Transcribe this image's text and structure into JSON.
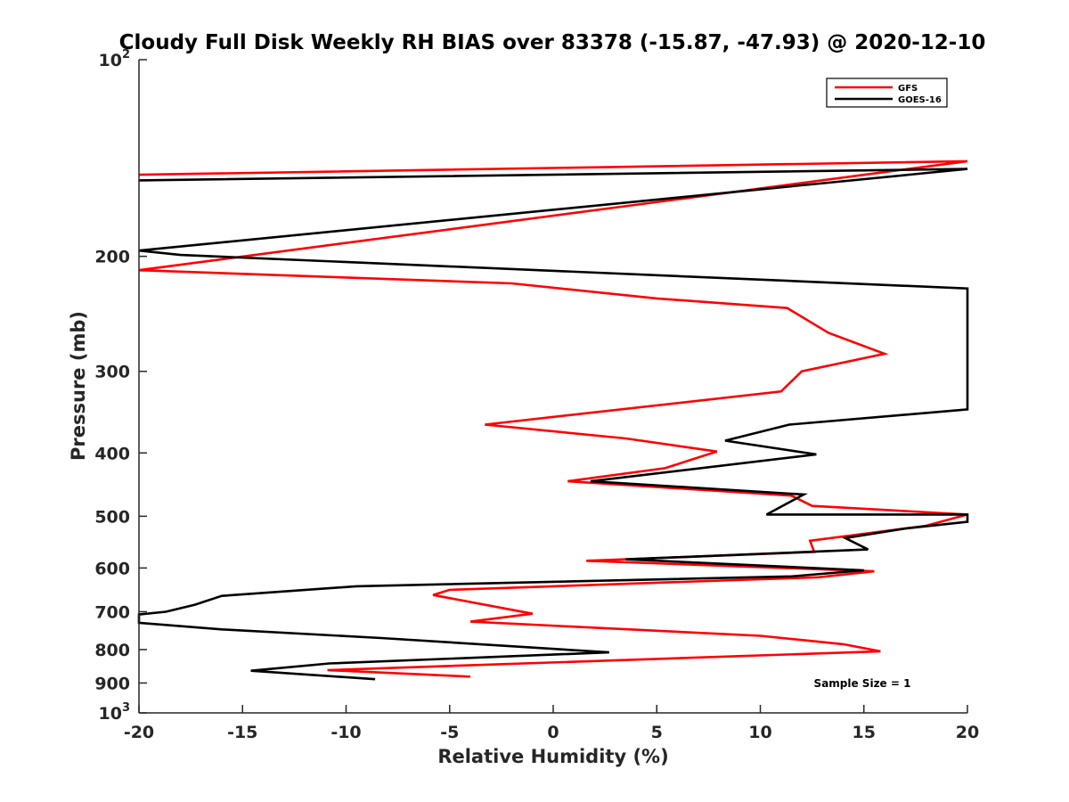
{
  "chart_data": {
    "type": "line",
    "title": "Cloudy Full Disk Weekly RH BIAS over 83378 (-15.87, -47.93) @ 2020-12-10",
    "xlabel": "Relative Humidity (%)",
    "ylabel": "Pressure (mb)",
    "xlim": [
      -20,
      20
    ],
    "ylim": [
      100,
      1000
    ],
    "y_scale": "log",
    "y_reversed": true,
    "x_ticks": [
      "-20",
      "-15",
      "-10",
      "-5",
      "0",
      "5",
      "10",
      "15",
      "20"
    ],
    "y_ticks": [
      {
        "value": 100,
        "base": "10",
        "exp": "2"
      },
      {
        "value": 200,
        "label": "200"
      },
      {
        "value": 300,
        "label": "300"
      },
      {
        "value": 400,
        "label": "400"
      },
      {
        "value": 500,
        "label": "500"
      },
      {
        "value": 600,
        "label": "600"
      },
      {
        "value": 700,
        "label": "700"
      },
      {
        "value": 800,
        "label": "800"
      },
      {
        "value": 900,
        "label": "900"
      },
      {
        "value": 1000,
        "base": "10",
        "exp": "3"
      }
    ],
    "legend_position": "top-right",
    "annotation": "Sample Size = 1",
    "series": [
      {
        "name": "GFS",
        "color": "#ff0000",
        "points": [
          [
            -20,
            150
          ],
          [
            20,
            143
          ],
          [
            -20,
            210
          ],
          [
            -2,
            220
          ],
          [
            5,
            232
          ],
          [
            11.3,
            240
          ],
          [
            13.3,
            262
          ],
          [
            16,
            282
          ],
          [
            12,
            300
          ],
          [
            11,
            322
          ],
          [
            -3.3,
            362
          ],
          [
            3.5,
            380
          ],
          [
            7.9,
            398
          ],
          [
            5.4,
            422
          ],
          [
            0.7,
            442
          ],
          [
            11.5,
            465
          ],
          [
            12.5,
            482
          ],
          [
            20,
            497
          ],
          [
            18,
            517
          ],
          [
            12.4,
            545
          ],
          [
            12.6,
            567
          ],
          [
            1.6,
            585
          ],
          [
            15.5,
            607
          ],
          [
            12.8,
            620
          ],
          [
            -5,
            648
          ],
          [
            -5.8,
            660
          ],
          [
            -1,
            705
          ],
          [
            -4,
            725
          ],
          [
            10,
            762
          ],
          [
            14,
            785
          ],
          [
            15.8,
            805
          ],
          [
            -10.9,
            860
          ],
          [
            -4,
            880
          ]
        ]
      },
      {
        "name": "GOES-16",
        "color": "#000000",
        "points": [
          [
            -20,
            153
          ],
          [
            20,
            147
          ],
          [
            -20,
            196
          ],
          [
            -18,
            199
          ],
          [
            20,
            224
          ],
          [
            20,
            343
          ],
          [
            11.4,
            362
          ],
          [
            8.3,
            383
          ],
          [
            12.7,
            402
          ],
          [
            1.8,
            442
          ],
          [
            12.1,
            463
          ],
          [
            10.3,
            497
          ],
          [
            20,
            497
          ],
          [
            20,
            510
          ],
          [
            17,
            522
          ],
          [
            14.1,
            540
          ],
          [
            15.2,
            562
          ],
          [
            3.5,
            582
          ],
          [
            15,
            605
          ],
          [
            11.5,
            618
          ],
          [
            -9.5,
            640
          ],
          [
            -16,
            662
          ],
          [
            -17.3,
            683
          ],
          [
            -18.7,
            700
          ],
          [
            -20,
            707
          ],
          [
            -20,
            728
          ],
          [
            -16,
            745
          ],
          [
            -8.3,
            768
          ],
          [
            2.7,
            808
          ],
          [
            -10.8,
            840
          ],
          [
            -14.6,
            862
          ],
          [
            -8.6,
            888
          ]
        ]
      }
    ]
  }
}
